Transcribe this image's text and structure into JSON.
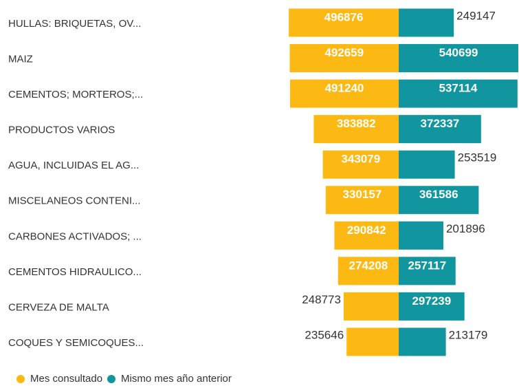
{
  "chart_data": {
    "type": "diverging_bar",
    "categories": [
      "HULLAS: BRIQUETAS, OV...",
      "MAIZ",
      "CEMENTOS; MORTEROS;...",
      "PRODUCTOS VARIOS",
      "AGUA, INCLUIDAS EL AG...",
      "MISCELANEOS CONTENI...",
      "CARBONES ACTIVADOS; ...",
      "CEMENTOS HIDRAULICO...",
      "CERVEZA DE MALTA",
      "COQUES Y SEMICOQUES..."
    ],
    "series": [
      {
        "name": "Mes consultado",
        "color": "#fdb913",
        "values": [
          496876,
          492659,
          491240,
          383882,
          343079,
          330157,
          290842,
          274208,
          248773,
          235646
        ]
      },
      {
        "name": "Mismo mes año anterior",
        "color": "#11959f",
        "values": [
          249147,
          540699,
          537114,
          372337,
          253519,
          361586,
          201896,
          257117,
          297239,
          213179
        ]
      }
    ],
    "legend": "bottom-left"
  }
}
